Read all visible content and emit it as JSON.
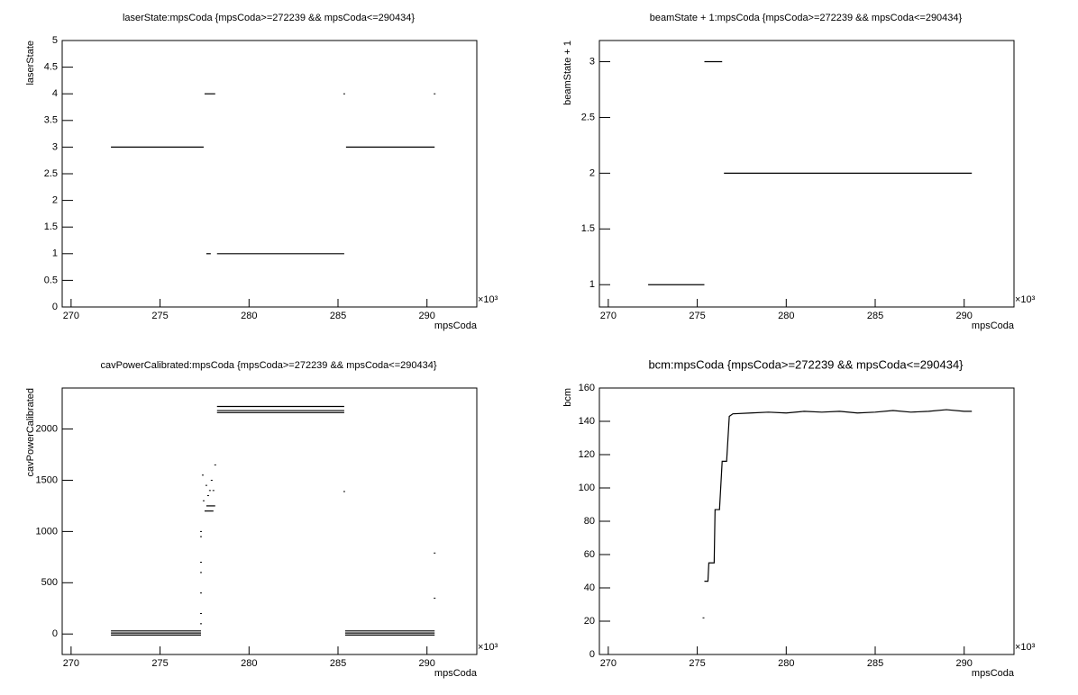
{
  "chart_data": [
    {
      "type": "line",
      "title": "laserState:mpsCoda {mpsCoda>=272239 && mpsCoda<=290434}",
      "xlabel": "mpsCoda",
      "ylabel": "laserState",
      "x_multiplier": "×10³",
      "color": "#000000",
      "xlim": [
        269.5,
        292.8
      ],
      "xticks": [
        270,
        275,
        280,
        285,
        290
      ],
      "ylim": [
        0,
        5
      ],
      "yticks": [
        0,
        0.5,
        1,
        1.5,
        2,
        2.5,
        3,
        3.5,
        4,
        4.5,
        5
      ],
      "x": [
        272.24,
        277.45,
        null,
        277.5,
        278.1,
        null,
        277.6,
        277.85,
        null,
        278.2,
        285.35,
        null,
        285.35,
        null,
        285.45,
        290.43,
        null,
        290.43
      ],
      "values": [
        3,
        3,
        null,
        4,
        4,
        null,
        1,
        1,
        null,
        1,
        1,
        null,
        4,
        null,
        3,
        3,
        null,
        4
      ]
    },
    {
      "type": "line",
      "title": "beamState + 1:mpsCoda {mpsCoda>=272239 && mpsCoda<=290434}",
      "xlabel": "mpsCoda",
      "ylabel": "beamState + 1",
      "x_multiplier": "×10³",
      "color": "#000000",
      "xlim": [
        269.5,
        292.8
      ],
      "xticks": [
        270,
        275,
        280,
        285,
        290
      ],
      "ylim": [
        0.8,
        3.19
      ],
      "yticks": [
        1,
        1.5,
        2,
        2.5,
        3
      ],
      "x": [
        272.24,
        275.4,
        null,
        275.4,
        276.4,
        null,
        276.5,
        290.43
      ],
      "values": [
        1,
        1,
        null,
        3,
        3,
        null,
        2,
        2
      ]
    },
    {
      "type": "line",
      "title": "cavPowerCalibrated:mpsCoda {mpsCoda>=272239 && mpsCoda<=290434}",
      "xlabel": "mpsCoda",
      "ylabel": "cavPowerCalibrated",
      "x_multiplier": "×10³",
      "color": "#000000",
      "xlim": [
        269.5,
        292.8
      ],
      "xticks": [
        270,
        275,
        280,
        285,
        290
      ],
      "ylim": [
        -200,
        2400
      ],
      "yticks": [
        0,
        500,
        1000,
        1500,
        2000
      ],
      "x": [
        272.24,
        277.3,
        null,
        272.24,
        277.3,
        null,
        272.24,
        277.3,
        null,
        277.3,
        null,
        277.3,
        null,
        277.3,
        null,
        277.3,
        null,
        277.3,
        null,
        277.3,
        null,
        277.3,
        null,
        277.4,
        null,
        277.45,
        null,
        277.6,
        null,
        277.7,
        null,
        277.8,
        null,
        277.9,
        null,
        278.0,
        null,
        278.1,
        null,
        277.5,
        278.0,
        null,
        277.6,
        278.1,
        null,
        278.2,
        285.35,
        null,
        278.2,
        285.35,
        null,
        278.2,
        285.35,
        null,
        285.35,
        null,
        285.4,
        290.43,
        null,
        285.4,
        290.43,
        null,
        285.4,
        290.43,
        null,
        290.43,
        null,
        290.43
      ],
      "values": [
        30,
        30,
        null,
        10,
        10,
        null,
        -10,
        -10,
        null,
        100,
        null,
        200,
        null,
        400,
        null,
        600,
        null,
        700,
        null,
        950,
        null,
        1000,
        null,
        1550,
        null,
        1300,
        null,
        1450,
        null,
        1350,
        null,
        1400,
        null,
        1500,
        null,
        1400,
        null,
        1650,
        null,
        1200,
        1200,
        null,
        1250,
        1250,
        null,
        2220,
        2220,
        null,
        2180,
        2180,
        null,
        2160,
        2160,
        null,
        1390,
        null,
        30,
        30,
        null,
        10,
        10,
        null,
        -10,
        -10,
        null,
        790,
        null,
        350
      ]
    },
    {
      "type": "line",
      "title": "bcm:mpsCoda {mpsCoda>=272239 && mpsCoda<=290434}",
      "xlabel": "mpsCoda",
      "ylabel": "bcm",
      "x_multiplier": "×10³",
      "color": "#000000",
      "xlim": [
        269.5,
        292.8
      ],
      "xticks": [
        270,
        275,
        280,
        285,
        290
      ],
      "ylim": [
        0,
        160
      ],
      "yticks": [
        0,
        20,
        40,
        60,
        80,
        100,
        120,
        140,
        160
      ],
      "x": [
        275.35,
        null,
        275.4,
        275.6,
        275.65,
        275.95,
        276.0,
        276.25,
        276.4,
        276.65,
        276.8,
        277.0,
        278,
        279,
        280,
        281,
        282,
        283,
        284,
        285,
        286,
        287,
        288,
        289,
        290,
        290.43
      ],
      "values": [
        22,
        null,
        44,
        44,
        55,
        55,
        87,
        87,
        116,
        116,
        143,
        144.5,
        145,
        145.5,
        145,
        146,
        145.5,
        146,
        145,
        145.5,
        146.5,
        145.5,
        146,
        147,
        146,
        146
      ]
    }
  ]
}
